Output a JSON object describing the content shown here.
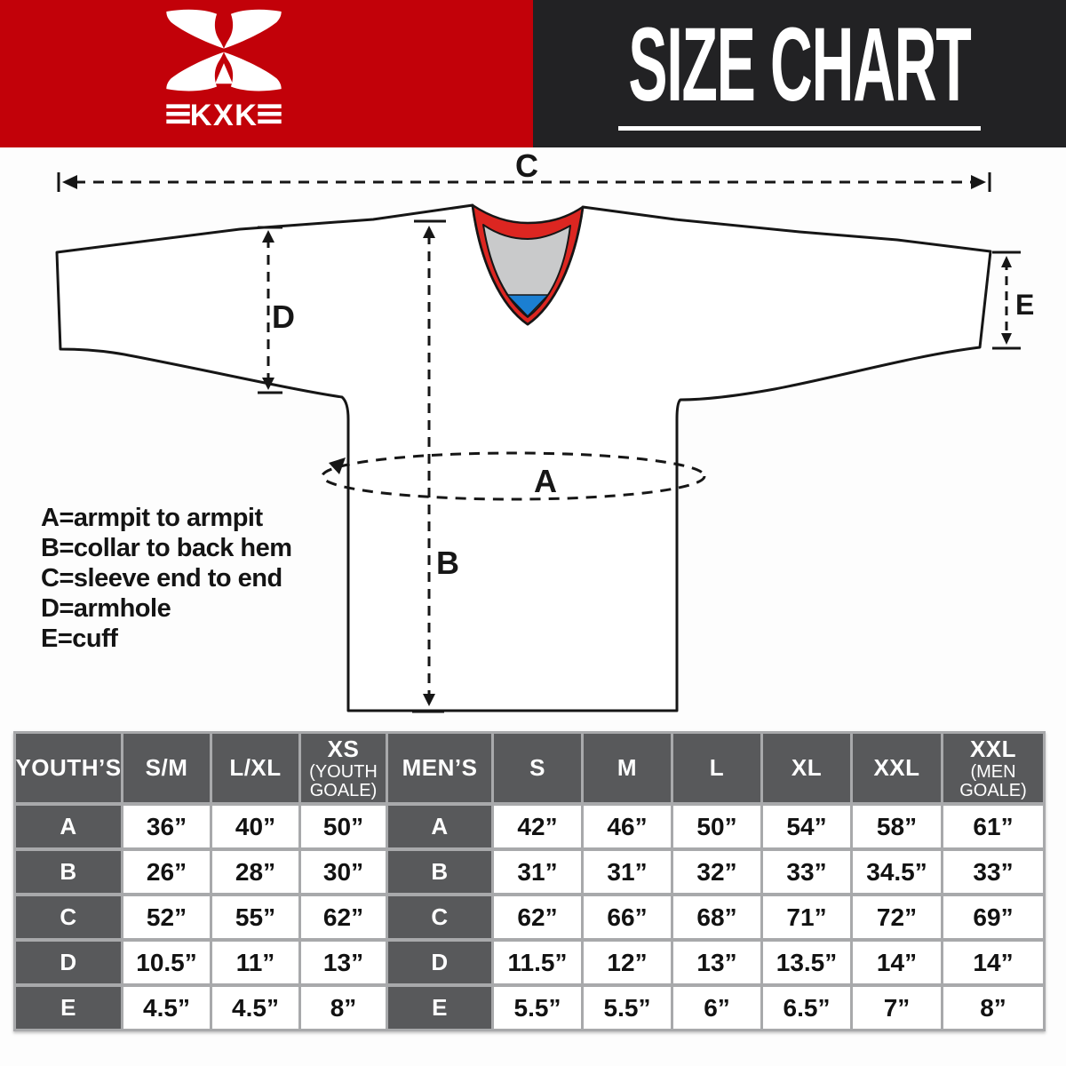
{
  "header": {
    "brand": "KXK",
    "title": "SIZE CHART",
    "colors": {
      "brand_red": "#c20109",
      "header_black": "#222224",
      "text_white": "#ffffff"
    }
  },
  "diagram": {
    "markers": {
      "A": "A",
      "B": "B",
      "C": "C",
      "D": "D",
      "E": "E"
    },
    "legend": [
      "A=armpit to armpit",
      "B=collar to back hem",
      "C=sleeve end to end",
      "D=armhole",
      "E=cuff"
    ],
    "colors": {
      "outline": "#161616",
      "collar_trim": "#dc2621",
      "collar_inner": "#c9cacb",
      "collar_accent": "#1b7fd2",
      "body": "#ffffff"
    }
  },
  "table": {
    "colors": {
      "header_bg": "#58595b",
      "header_text": "#ffffff",
      "cell_bg": "#ffffff",
      "grid_line": "#a8a9ab",
      "value_text": "#121212"
    },
    "youth": {
      "group_label": "YOUTH’S",
      "columns": [
        {
          "main": "S/M",
          "sub_lines": []
        },
        {
          "main": "L/XL",
          "sub_lines": []
        },
        {
          "main": "XS",
          "sub_lines": [
            "(YOUTH",
            "GOALE)"
          ]
        }
      ],
      "rows": [
        {
          "label": "A",
          "values": [
            "36”",
            "40”",
            "50”"
          ]
        },
        {
          "label": "B",
          "values": [
            "26”",
            "28”",
            "30”"
          ]
        },
        {
          "label": "C",
          "values": [
            "52”",
            "55”",
            "62”"
          ]
        },
        {
          "label": "D",
          "values": [
            "10.5”",
            "11”",
            "13”"
          ]
        },
        {
          "label": "E",
          "values": [
            "4.5”",
            "4.5”",
            "8”"
          ]
        }
      ]
    },
    "men": {
      "group_label": "MEN’S",
      "columns": [
        {
          "main": "S",
          "sub_lines": []
        },
        {
          "main": "M",
          "sub_lines": []
        },
        {
          "main": "L",
          "sub_lines": []
        },
        {
          "main": "XL",
          "sub_lines": []
        },
        {
          "main": "XXL",
          "sub_lines": []
        },
        {
          "main": "XXL",
          "sub_lines": [
            "(MEN",
            "GOALE)"
          ]
        }
      ],
      "rows": [
        {
          "label": "A",
          "values": [
            "42”",
            "46”",
            "50”",
            "54”",
            "58”",
            "61”"
          ]
        },
        {
          "label": "B",
          "values": [
            "31”",
            "31”",
            "32”",
            "33”",
            "34.5”",
            "33”"
          ]
        },
        {
          "label": "C",
          "values": [
            "62”",
            "66”",
            "68”",
            "71”",
            "72”",
            "69”"
          ]
        },
        {
          "label": "D",
          "values": [
            "11.5”",
            "12”",
            "13”",
            "13.5”",
            "14”",
            "14”"
          ]
        },
        {
          "label": "E",
          "values": [
            "5.5”",
            "5.5”",
            "6”",
            "6.5”",
            "7”",
            "8”"
          ]
        }
      ]
    }
  }
}
